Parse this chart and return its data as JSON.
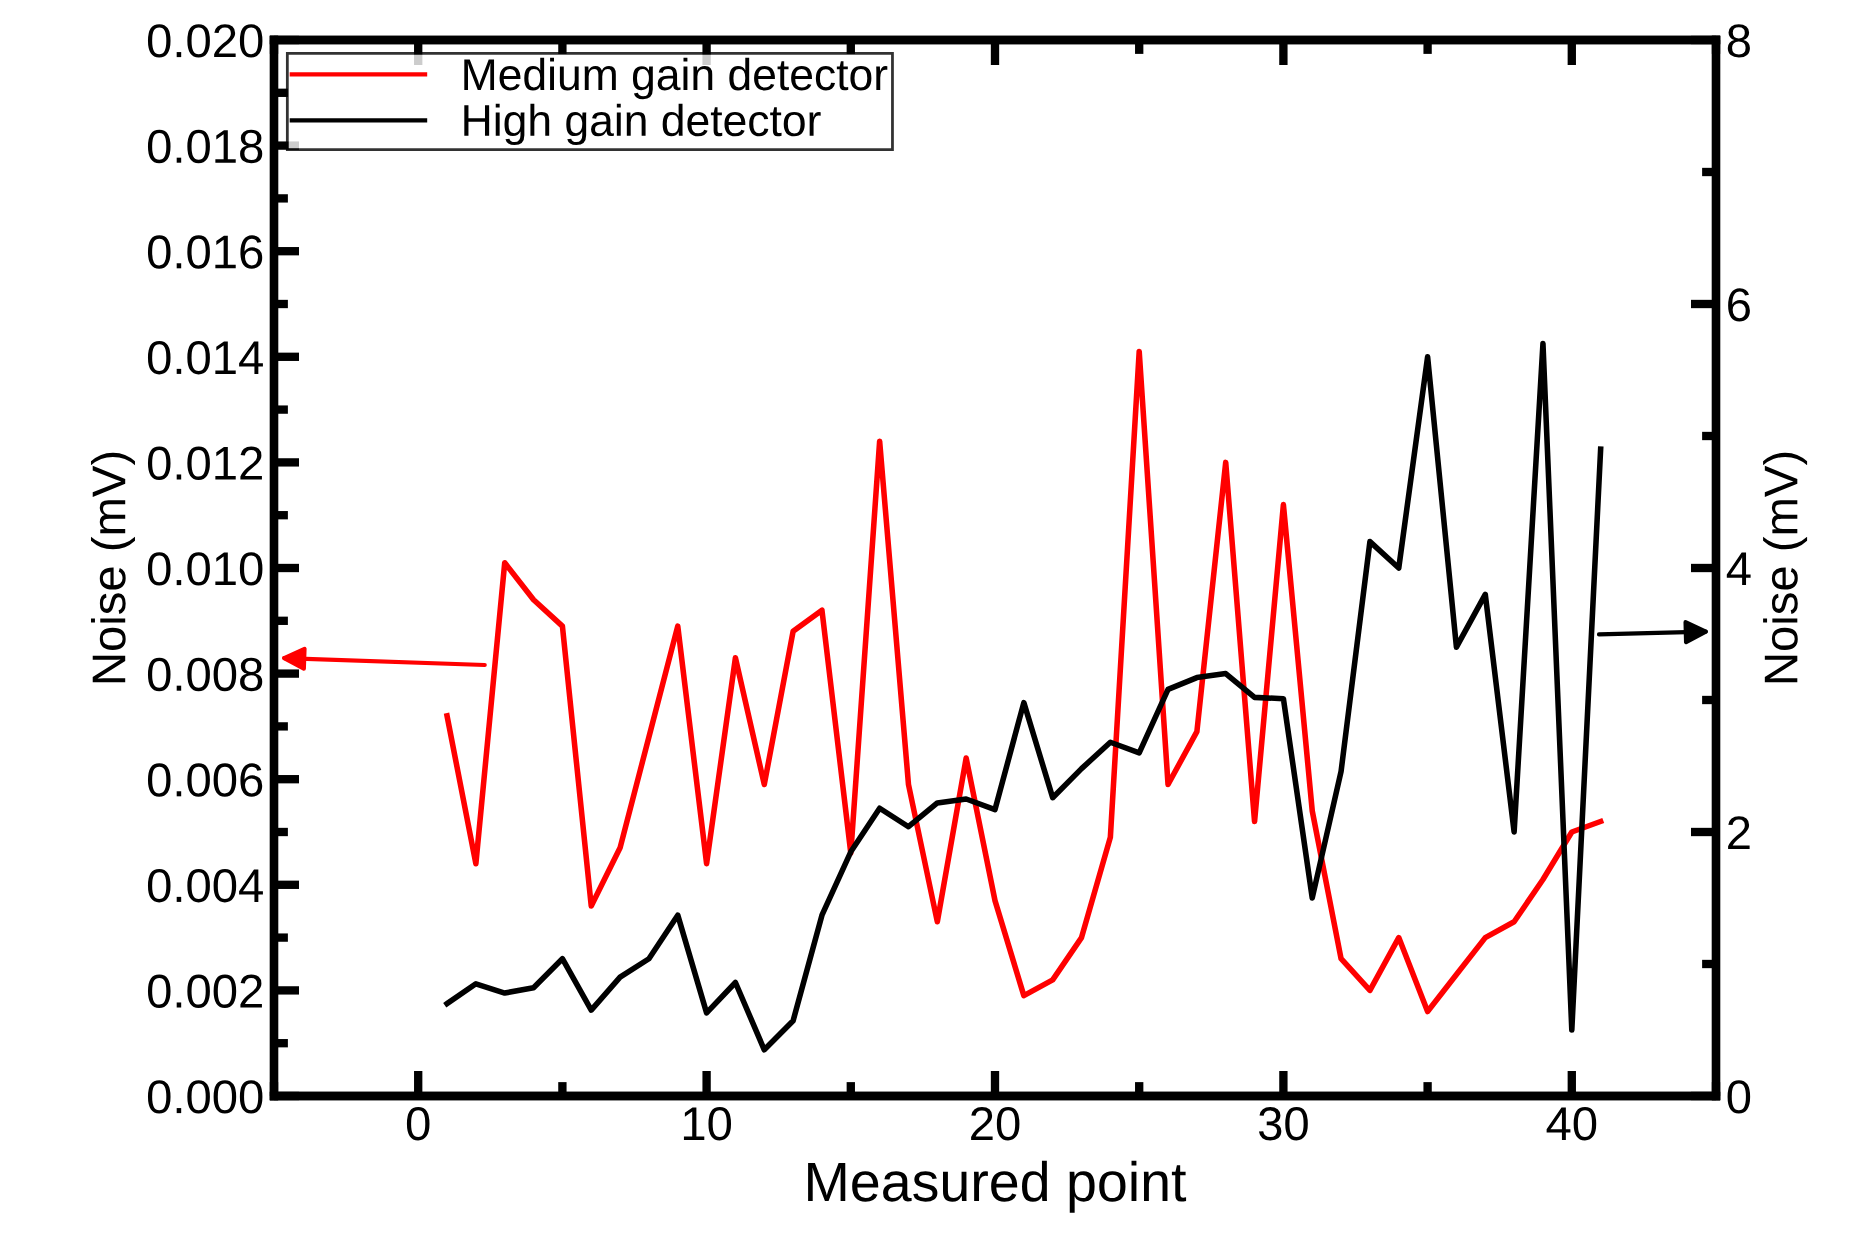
{
  "chart_data": {
    "type": "line",
    "xlabel": "Measured point",
    "ylabel": "Noise (mV)",
    "y2label": "Noise (mV)",
    "x": [
      1,
      2,
      3,
      4,
      5,
      6,
      7,
      8,
      9,
      10,
      11,
      12,
      13,
      14,
      15,
      16,
      17,
      18,
      19,
      20,
      21,
      22,
      23,
      24,
      25,
      26,
      27,
      28,
      29,
      30,
      31,
      32,
      33,
      34,
      35,
      36,
      37,
      38,
      39,
      40,
      41
    ],
    "series": [
      {
        "name": "Medium gain detector",
        "color": "#ff0000",
        "values": [
          0.0072,
          0.0044,
          0.0101,
          0.0094,
          0.0089,
          0.0036,
          0.0047,
          0.0068,
          0.0089,
          0.0044,
          0.0083,
          0.0059,
          0.0088,
          0.0092,
          0.0046,
          0.0124,
          0.0059,
          0.0033,
          0.0064,
          0.0037,
          0.0019,
          0.0022,
          0.003,
          0.0049,
          0.0141,
          0.0059,
          0.0069,
          0.012,
          0.0052,
          0.0112,
          0.0054,
          0.0026,
          0.002,
          0.003,
          0.0016,
          0.0023,
          0.003,
          0.0033,
          0.0041,
          0.005,
          0.0052
        ]
      },
      {
        "name": "High gain detector",
        "color": "#000000",
        "axis": "y2",
        "values": [
          0.7,
          0.85,
          0.78,
          0.82,
          1.04,
          0.65,
          0.9,
          1.04,
          1.37,
          0.63,
          0.86,
          0.35,
          0.57,
          1.37,
          1.85,
          2.18,
          2.04,
          2.22,
          2.25,
          2.17,
          2.98,
          2.26,
          2.48,
          2.68,
          2.6,
          3.08,
          3.17,
          3.2,
          3.02,
          3.01,
          1.5,
          2.46,
          4.2,
          4.0,
          5.6,
          3.4,
          3.8,
          2.0,
          5.7,
          0.5,
          4.9
        ]
      }
    ],
    "xlim": [
      -5,
      45
    ],
    "xticks": [
      0,
      10,
      20,
      30,
      40
    ],
    "ylim": [
      0,
      0.02
    ],
    "yticks": [
      {
        "value": 0,
        "label": "0.000"
      },
      {
        "value": 0.002,
        "label": "0.002"
      },
      {
        "value": 0.004,
        "label": "0.004"
      },
      {
        "value": 0.006,
        "label": "0.006"
      },
      {
        "value": 0.008,
        "label": "0.008"
      },
      {
        "value": 0.01,
        "label": "0.010"
      },
      {
        "value": 0.012,
        "label": "0.012"
      },
      {
        "value": 0.014,
        "label": "0.014"
      },
      {
        "value": 0.016,
        "label": "0.016"
      },
      {
        "value": 0.018,
        "label": "0.018"
      },
      {
        "value": 0.02,
        "label": "0.020"
      }
    ],
    "y2lim": [
      0,
      8
    ],
    "y2ticks": [
      0,
      2,
      4,
      6,
      8
    ],
    "grid": false,
    "legend": "top left"
  }
}
